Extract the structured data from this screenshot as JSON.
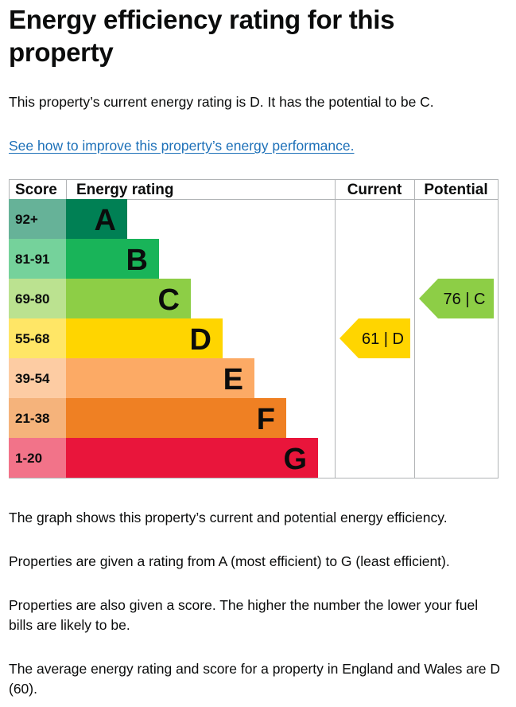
{
  "heading": "Energy efficiency rating for this property",
  "intro": "This property’s current energy rating is D. It has the potential to be C.",
  "improve_link": "See how to improve this property’s energy performance.",
  "paragraphs": [
    "The graph shows this property’s current and potential energy efficiency.",
    "Properties are given a rating from A (most efficient) to G (least efficient).",
    "Properties are also given a score. The higher the number the lower your fuel bills are likely to be.",
    "The average energy rating and score for a property in England and Wales are D (60)."
  ],
  "chart_data": {
    "type": "table",
    "columns": [
      "Score",
      "Energy rating",
      "Current",
      "Potential"
    ],
    "bands": [
      {
        "score": "92+",
        "letter": "A",
        "color": "#008054",
        "score_bg": "#66b298"
      },
      {
        "score": "81-91",
        "letter": "B",
        "color": "#19b459",
        "score_bg": "#75d29b"
      },
      {
        "score": "69-80",
        "letter": "C",
        "color": "#8dce46",
        "score_bg": "#bbe290"
      },
      {
        "score": "55-68",
        "letter": "D",
        "color": "#ffd500",
        "score_bg": "#ffe666"
      },
      {
        "score": "39-54",
        "letter": "E",
        "color": "#fcaa65",
        "score_bg": "#fdcca3"
      },
      {
        "score": "21-38",
        "letter": "F",
        "color": "#ef8023",
        "score_bg": "#f5b37b"
      },
      {
        "score": "1-20",
        "letter": "G",
        "color": "#e9153b",
        "score_bg": "#f27389"
      }
    ],
    "current": {
      "score": 61,
      "letter": "D",
      "label": "61 | D"
    },
    "potential": {
      "score": 76,
      "letter": "C",
      "label": "76 | C"
    }
  }
}
